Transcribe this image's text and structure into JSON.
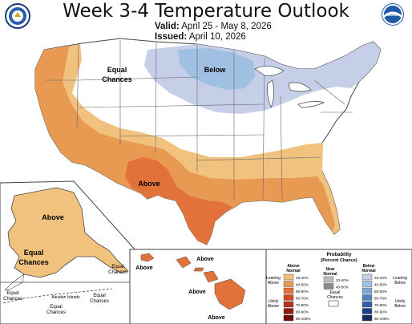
{
  "header": {
    "title": "Week 3-4 Temperature Outlook",
    "valid_label": "Valid:",
    "valid_value": "April 25 - May 8, 2026",
    "issued_label": "Issued:",
    "issued_value": "April 10, 2026"
  },
  "logos": {
    "left": "doc-seal",
    "right": "noaa-logo",
    "right_text": "NOAA"
  },
  "map_labels": {
    "conus_equal": "Equal",
    "conus_chances": "Chances",
    "conus_below": "Below",
    "conus_above": "Above",
    "alaska_above": "Above",
    "alaska_equal": "Equal",
    "alaska_chances": "Chances",
    "ak_equal_small": "Equal",
    "ak_chances_small": "Chances",
    "aleutian": "Aleutian Islands",
    "ak2_equal": "Equal",
    "ak2_chances": "Chances",
    "ak3_equal": "Equal",
    "ak3_chances": "Chances",
    "hawaii_above_1": "Above",
    "hawaii_above_2": "Above",
    "hawaii_above_3": "Above",
    "hawaii_above_4": "Above"
  },
  "legend": {
    "title": "Probability",
    "subtitle": "(Percent Chance)",
    "col_above_1": "Above",
    "col_above_2": "Normal",
    "col_near_1": "Near",
    "col_near_2": "Normal",
    "col_below_1": "Below",
    "col_below_2": "Normal",
    "leaning_above_1": "Leaning",
    "leaning_above_2": "Above",
    "likely_above_1": "Likely",
    "likely_above_2": "Above",
    "leaning_below_1": "Leaning",
    "leaning_below_2": "Below",
    "likely_below_1": "Likely",
    "likely_below_2": "Below",
    "equal_1": "Equal",
    "equal_2": "Chances",
    "above_bins": [
      "33-40%",
      "40-50%",
      "50-60%",
      "60-70%",
      "70-80%",
      "80-90%",
      "90-100%"
    ],
    "near_bins": [
      "33-40%",
      "40-50%"
    ],
    "below_bins": [
      "33-40%",
      "40-50%",
      "50-60%",
      "60-70%",
      "70-80%",
      "80-90%",
      "90-100%"
    ],
    "above_colors": [
      "#f1c27d",
      "#e99a52",
      "#e2713a",
      "#d24a24",
      "#b8321a",
      "#8e1c10",
      "#6b0d06"
    ],
    "near_colors": [
      "#bdbdbd",
      "#8c8c8c"
    ],
    "below_colors": [
      "#c6cfe8",
      "#9fc0e2",
      "#7ba7d6",
      "#4f86c1",
      "#3361a8",
      "#213f86",
      "#14275e"
    ]
  },
  "colors": {
    "above_33_40": "#f1c27d",
    "above_40_50": "#e99a52",
    "above_50_60": "#e2713a",
    "below_33_40": "#c6cfe8",
    "below_40_50": "#9fc0e2",
    "equal": "#ffffff",
    "border": "#444444"
  }
}
